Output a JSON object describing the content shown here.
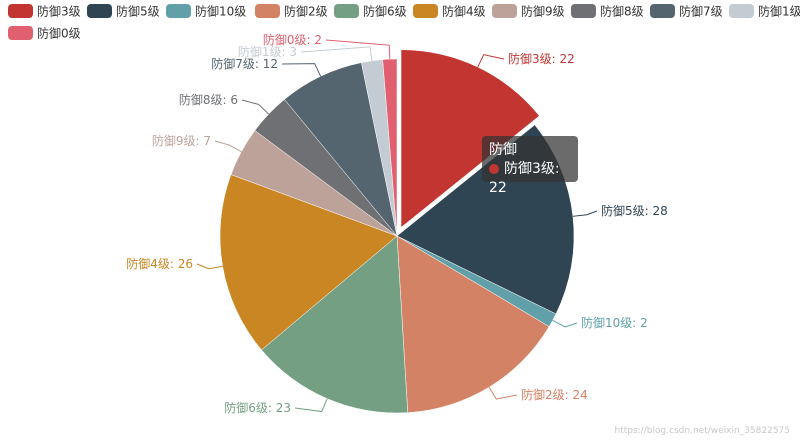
{
  "chart_data": {
    "type": "pie",
    "series_name": "防御",
    "slices": [
      {
        "name": "防御3级",
        "value": 22,
        "color": "#c23531"
      },
      {
        "name": "防御5级",
        "value": 28,
        "color": "#2f4554"
      },
      {
        "name": "防御10级",
        "value": 2,
        "color": "#61a0a8"
      },
      {
        "name": "防御2级",
        "value": 24,
        "color": "#d48265"
      },
      {
        "name": "防御6级",
        "value": 23,
        "color": "#749f83"
      },
      {
        "name": "防御4级",
        "value": 26,
        "color": "#ca8622"
      },
      {
        "name": "防御9级",
        "value": 7,
        "color": "#bda29a"
      },
      {
        "name": "防御8级",
        "value": 6,
        "color": "#6e7074"
      },
      {
        "name": "防御7级",
        "value": 12,
        "color": "#546570"
      },
      {
        "name": "防御1级",
        "value": 3,
        "color": "#c4ccd3"
      },
      {
        "name": "防御0级",
        "value": 2,
        "color": "#e06070"
      }
    ],
    "highlighted": "防御3级",
    "legend_position": "top"
  },
  "tooltip": {
    "title": "防御",
    "text": "防御3级: 22",
    "dot_color": "#c23531"
  },
  "watermark": "https://blog.csdn.net/weixin_35822575"
}
